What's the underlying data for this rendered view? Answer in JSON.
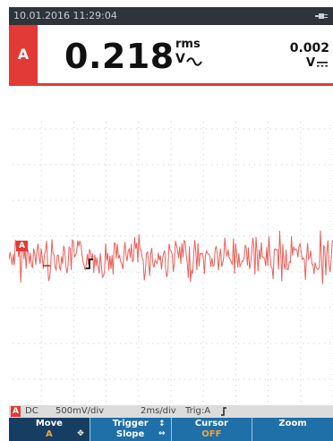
{
  "status": {
    "datetime": "10.01.2016 11:29:04",
    "power_icon": "plug-icon"
  },
  "readout": {
    "channel": "A",
    "main_value": "0.218",
    "main_unit_top": "rms",
    "main_unit_bottom": "V",
    "secondary_value": "0.002",
    "secondary_unit": "V"
  },
  "trace": {
    "channel": "A",
    "color": "#e8605a"
  },
  "channel_bar": {
    "channel": "A",
    "coupling": "DC",
    "volts_div": "500mV/div",
    "time_div": "2ms/div",
    "trigger": "Trig:A"
  },
  "softkeys": [
    {
      "line1": "Move",
      "line2": "A"
    },
    {
      "line1": "Trigger",
      "line2": "Slope"
    },
    {
      "line1": "Cursor",
      "line2": "OFF"
    },
    {
      "line1": "Zoom",
      "line2": ""
    }
  ],
  "colors": {
    "accent": "#e23a35",
    "softkey_bg": "#1f6fa8",
    "softkey_active": "#163e63",
    "highlight": "#f2a33a"
  }
}
